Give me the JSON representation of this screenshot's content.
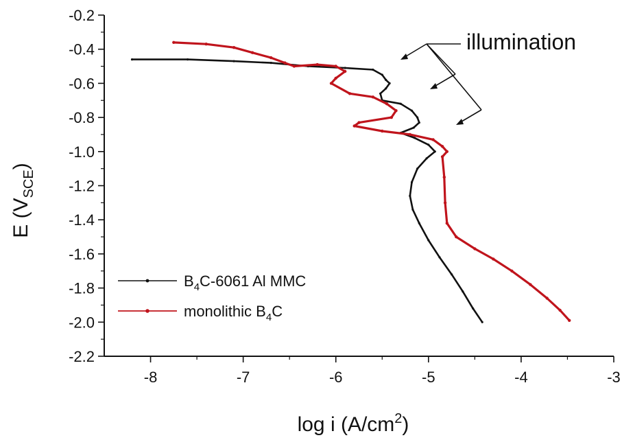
{
  "chart_data": {
    "type": "line",
    "xlabel": {
      "base": "log i (A/cm",
      "sup": "2",
      "tail": ")"
    },
    "ylabel": {
      "base": "E (V",
      "sub": "SCE",
      "tail": ")"
    },
    "xlim": [
      -8.5,
      -3
    ],
    "ylim": [
      -2.2,
      -0.2
    ],
    "x_ticks": [
      -8,
      -7,
      -6,
      -5,
      -4,
      -3
    ],
    "y_ticks": [
      -0.2,
      -0.4,
      -0.6,
      -0.8,
      -1.0,
      -1.2,
      -1.4,
      -1.6,
      -1.8,
      -2.0,
      -2.2
    ],
    "x_tick_labels": [
      "-8",
      "-7",
      "-6",
      "-5",
      "-4",
      "-3"
    ],
    "y_tick_labels": [
      "-0.2",
      "-0.4",
      "-0.6",
      "-0.8",
      "-1.0",
      "-1.2",
      "-1.4",
      "-1.6",
      "-1.8",
      "-2.0",
      "-2.2"
    ],
    "grid": false,
    "legend_position": "bottom-left",
    "annotation": {
      "text": "illumination"
    },
    "series": [
      {
        "name_parts": {
          "a": "B",
          "sub": "4",
          "b": "C-6061 Al MMC"
        },
        "color": "#111111",
        "points": [
          [
            -8.2,
            -0.46
          ],
          [
            -7.6,
            -0.46
          ],
          [
            -7.1,
            -0.47
          ],
          [
            -6.7,
            -0.48
          ],
          [
            -6.3,
            -0.5
          ],
          [
            -5.9,
            -0.51
          ],
          [
            -5.6,
            -0.52
          ],
          [
            -5.5,
            -0.55
          ],
          [
            -5.46,
            -0.58
          ],
          [
            -5.42,
            -0.6
          ],
          [
            -5.46,
            -0.63
          ],
          [
            -5.52,
            -0.66
          ],
          [
            -5.5,
            -0.7
          ],
          [
            -5.3,
            -0.72
          ],
          [
            -5.18,
            -0.76
          ],
          [
            -5.12,
            -0.8
          ],
          [
            -5.1,
            -0.83
          ],
          [
            -5.16,
            -0.86
          ],
          [
            -5.3,
            -0.89
          ],
          [
            -5.15,
            -0.92
          ],
          [
            -5.0,
            -0.96
          ],
          [
            -4.93,
            -1.0
          ],
          [
            -5.02,
            -1.04
          ],
          [
            -5.12,
            -1.1
          ],
          [
            -5.18,
            -1.18
          ],
          [
            -5.2,
            -1.26
          ],
          [
            -5.17,
            -1.34
          ],
          [
            -5.1,
            -1.42
          ],
          [
            -5.0,
            -1.52
          ],
          [
            -4.88,
            -1.62
          ],
          [
            -4.75,
            -1.72
          ],
          [
            -4.63,
            -1.82
          ],
          [
            -4.52,
            -1.92
          ],
          [
            -4.42,
            -2.0
          ]
        ]
      },
      {
        "name_parts": {
          "a": "monolithic B",
          "sub": "4",
          "b": "C"
        },
        "color": "#c0141c",
        "points": [
          [
            -7.75,
            -0.36
          ],
          [
            -7.4,
            -0.37
          ],
          [
            -7.1,
            -0.39
          ],
          [
            -6.9,
            -0.42
          ],
          [
            -6.7,
            -0.45
          ],
          [
            -6.55,
            -0.48
          ],
          [
            -6.45,
            -0.5
          ],
          [
            -6.2,
            -0.49
          ],
          [
            -6.0,
            -0.5
          ],
          [
            -5.9,
            -0.53
          ],
          [
            -6.0,
            -0.57
          ],
          [
            -6.05,
            -0.6
          ],
          [
            -5.85,
            -0.66
          ],
          [
            -5.6,
            -0.68
          ],
          [
            -5.45,
            -0.72
          ],
          [
            -5.35,
            -0.76
          ],
          [
            -5.4,
            -0.8
          ],
          [
            -5.75,
            -0.83
          ],
          [
            -5.8,
            -0.85
          ],
          [
            -5.5,
            -0.88
          ],
          [
            -5.2,
            -0.9
          ],
          [
            -4.95,
            -0.93
          ],
          [
            -4.85,
            -0.97
          ],
          [
            -4.8,
            -1.0
          ],
          [
            -4.85,
            -1.03
          ],
          [
            -4.83,
            -1.15
          ],
          [
            -4.82,
            -1.3
          ],
          [
            -4.8,
            -1.42
          ],
          [
            -4.7,
            -1.5
          ],
          [
            -4.5,
            -1.57
          ],
          [
            -4.3,
            -1.63
          ],
          [
            -4.1,
            -1.7
          ],
          [
            -3.9,
            -1.78
          ],
          [
            -3.72,
            -1.86
          ],
          [
            -3.58,
            -1.93
          ],
          [
            -3.48,
            -1.99
          ]
        ]
      }
    ]
  }
}
